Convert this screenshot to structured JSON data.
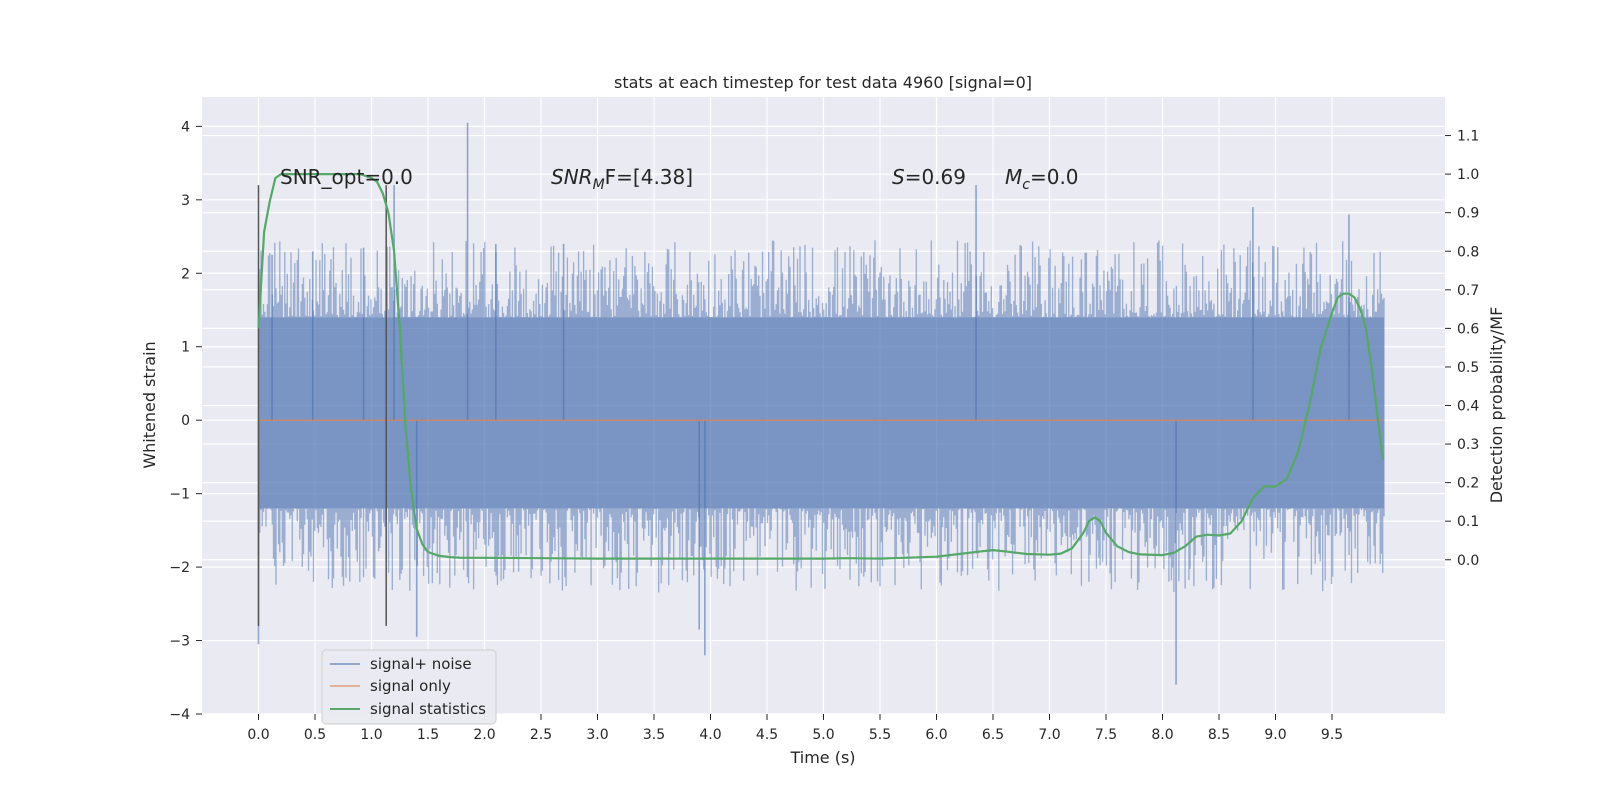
{
  "chart_data": {
    "type": "line",
    "title": "stats at each timestep for test data 4960 [signal=0]",
    "xlabel": "Time (s)",
    "ylabel": "Whitened strain",
    "y2label": "Detection probability/MF",
    "xlim": [
      -0.5,
      10.5
    ],
    "ylim": [
      -4,
      4.4
    ],
    "y2lim": [
      -0.4,
      1.2
    ],
    "x_ticks": [
      "0.0",
      "0.5",
      "1.0",
      "1.5",
      "2.0",
      "2.5",
      "3.0",
      "3.5",
      "4.0",
      "4.5",
      "5.0",
      "5.5",
      "6.0",
      "6.5",
      "7.0",
      "7.5",
      "8.0",
      "8.5",
      "9.0",
      "9.5"
    ],
    "y_ticks": [
      "4",
      "3",
      "2",
      "1",
      "0",
      "−1",
      "−2",
      "−3",
      "−4"
    ],
    "y2_ticks": [
      "1.1",
      "1.0",
      "0.9",
      "0.8",
      "0.7",
      "0.6",
      "0.5",
      "0.4",
      "0.3",
      "0.2",
      "0.1",
      "0.0"
    ],
    "grid": true,
    "legend_placement": "lower-left",
    "colors": {
      "noise": "#4c72b0",
      "signal_only": "#dd8452",
      "statistics": "#55a868",
      "background": "#eaeaf2",
      "marker": "#555555"
    },
    "annotations": {
      "snr_opt": "SNR_opt=0.0",
      "snr_mf_base": "SNR",
      "snr_mf_sub": "M",
      "snr_mf_rest": "F=[4.38]",
      "s_base": "S",
      "s_rest": "=0.69",
      "mc_base": "M",
      "mc_sub": "c",
      "mc_rest": "=0.0"
    },
    "markers": {
      "time_start": 0.0,
      "time_end": 1.13,
      "y_range": [
        -2.8,
        3.2
      ]
    },
    "series": [
      {
        "name": "signal+ noise",
        "envelope": {
          "x_range": [
            0.0,
            9.96
          ],
          "typical_upper": 1.4,
          "typical_lower": -1.2
        },
        "spikes": [
          {
            "x": 0.0,
            "y": -3.05
          },
          {
            "x": 0.12,
            "y": 2.25
          },
          {
            "x": 0.48,
            "y": 2.3
          },
          {
            "x": 0.93,
            "y": 2.35
          },
          {
            "x": 1.2,
            "y": 3.2
          },
          {
            "x": 1.4,
            "y": -2.95
          },
          {
            "x": 1.85,
            "y": 4.05
          },
          {
            "x": 2.1,
            "y": 2.4
          },
          {
            "x": 2.7,
            "y": 2.4
          },
          {
            "x": 3.9,
            "y": -2.85
          },
          {
            "x": 3.95,
            "y": -3.2
          },
          {
            "x": 6.35,
            "y": 3.2
          },
          {
            "x": 8.12,
            "y": -3.6
          },
          {
            "x": 8.8,
            "y": 2.9
          },
          {
            "x": 9.65,
            "y": 2.8
          }
        ]
      },
      {
        "name": "signal only",
        "x": [
          0.0,
          9.96
        ],
        "y": [
          0.0,
          0.0
        ]
      },
      {
        "name": "signal statistics",
        "x": [
          0.0,
          0.05,
          0.1,
          0.15,
          0.2,
          0.3,
          0.5,
          0.7,
          0.9,
          1.0,
          1.05,
          1.1,
          1.15,
          1.2,
          1.25,
          1.3,
          1.35,
          1.4,
          1.45,
          1.5,
          1.6,
          1.7,
          1.8,
          2.0,
          2.5,
          3.0,
          3.5,
          4.0,
          4.5,
          5.0,
          5.2,
          5.5,
          6.0,
          6.2,
          6.4,
          6.5,
          6.6,
          6.8,
          7.0,
          7.1,
          7.2,
          7.3,
          7.35,
          7.4,
          7.45,
          7.5,
          7.6,
          7.7,
          7.8,
          8.0,
          8.1,
          8.2,
          8.3,
          8.4,
          8.5,
          8.6,
          8.7,
          8.8,
          8.9,
          9.0,
          9.1,
          9.2,
          9.3,
          9.4,
          9.5,
          9.55,
          9.6,
          9.65,
          9.7,
          9.75,
          9.8,
          9.85,
          9.9,
          9.95
        ],
        "y": [
          0.6,
          0.85,
          0.93,
          0.99,
          1.0,
          1.0,
          1.0,
          1.0,
          1.0,
          0.99,
          0.98,
          0.95,
          0.9,
          0.8,
          0.6,
          0.35,
          0.18,
          0.08,
          0.04,
          0.02,
          0.01,
          0.007,
          0.005,
          0.005,
          0.004,
          0.003,
          0.003,
          0.003,
          0.003,
          0.003,
          0.004,
          0.003,
          0.008,
          0.015,
          0.022,
          0.025,
          0.022,
          0.015,
          0.013,
          0.016,
          0.03,
          0.07,
          0.1,
          0.11,
          0.1,
          0.07,
          0.035,
          0.02,
          0.014,
          0.012,
          0.018,
          0.035,
          0.06,
          0.065,
          0.063,
          0.068,
          0.1,
          0.16,
          0.19,
          0.19,
          0.21,
          0.28,
          0.4,
          0.55,
          0.64,
          0.68,
          0.69,
          0.69,
          0.68,
          0.65,
          0.6,
          0.5,
          0.38,
          0.26
        ]
      }
    ]
  }
}
